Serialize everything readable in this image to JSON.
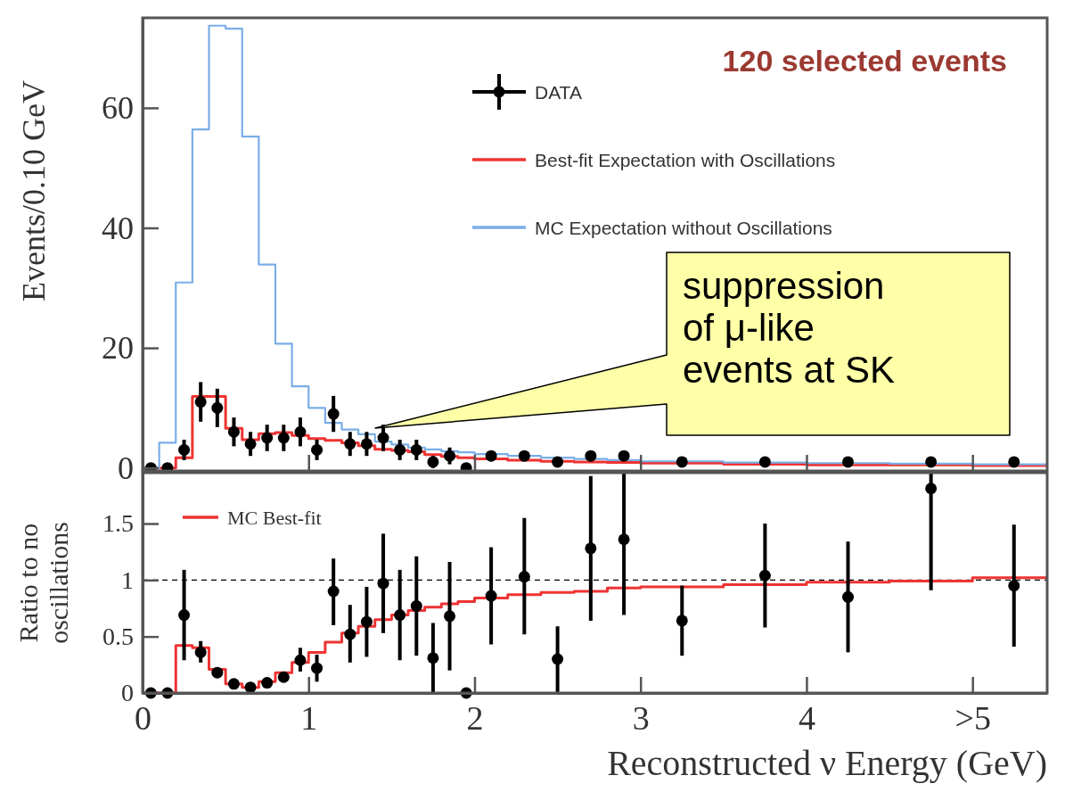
{
  "chart_data": [
    {
      "type": "step",
      "ylabel": "Events/0.10 GeV",
      "xlim": [
        0,
        5.45
      ],
      "ylim": [
        -0.5,
        75
      ],
      "xticks": [
        0,
        1,
        2,
        3,
        4,
        5
      ],
      "yticks": [
        0,
        20,
        40,
        60
      ],
      "tick_labels": "y",
      "legend": "top right",
      "series": [
        {
          "name": "DATA",
          "type": "scatter",
          "marker": "circle",
          "color": "#000000",
          "x": [
            0.05,
            0.15,
            0.25,
            0.35,
            0.45,
            0.55,
            0.65,
            0.75,
            0.85,
            0.95,
            1.05,
            1.15,
            1.25,
            1.35,
            1.45,
            1.55,
            1.65,
            1.75,
            1.85,
            1.95,
            2.1,
            2.3,
            2.5,
            2.7,
            2.9,
            3.25,
            3.75,
            4.25,
            4.75,
            5.25
          ],
          "values": [
            0,
            0,
            3,
            11,
            10,
            6,
            4,
            5,
            5,
            6,
            3,
            9,
            4,
            4,
            5,
            3,
            3,
            1,
            2,
            0,
            2,
            2,
            1,
            2,
            2,
            1,
            1,
            1,
            1,
            1
          ],
          "errors": [
            null,
            null,
            1.7,
            3.3,
            3.2,
            2.4,
            2,
            2.2,
            2.2,
            2.4,
            1.7,
            3,
            2,
            2,
            2.2,
            1.7,
            1.7,
            1,
            1.4,
            null,
            null,
            null,
            null,
            null,
            null,
            null,
            null,
            null,
            null,
            null
          ]
        },
        {
          "name": "Best-fit Expectation with Oscillations",
          "color": "#ee3333",
          "x": [
            0,
            0.1,
            0.2,
            0.3,
            0.4,
            0.5,
            0.6,
            0.7,
            0.8,
            0.9,
            1.0,
            1.1,
            1.2,
            1.3,
            1.4,
            1.5,
            1.6,
            1.7,
            1.8,
            1.9,
            2.0,
            2.2,
            2.4,
            2.6,
            2.8,
            3.0,
            3.5,
            4.0,
            4.5,
            5.0,
            5.45
          ],
          "values": [
            0,
            0,
            1.7,
            11.9,
            11.9,
            6.6,
            4.7,
            5.7,
            5.9,
            5.4,
            4.9,
            4.6,
            4.2,
            3.7,
            3.1,
            2.9,
            2.7,
            2.2,
            1.9,
            1.7,
            1.5,
            1.3,
            1.1,
            1.0,
            0.9,
            0.8,
            0.6,
            0.5,
            0.5,
            0.4,
            0.4
          ]
        },
        {
          "name": "MC Expectation without Oscillations",
          "color": "#7aaee6",
          "x": [
            0,
            0.1,
            0.2,
            0.3,
            0.4,
            0.5,
            0.6,
            0.7,
            0.8,
            0.9,
            1.0,
            1.1,
            1.2,
            1.3,
            1.4,
            1.5,
            1.6,
            1.7,
            1.8,
            1.9,
            2.0,
            2.2,
            2.4,
            2.6,
            2.8,
            3.0,
            3.5,
            4.0,
            4.5,
            5.0,
            5.45
          ],
          "values": [
            0,
            4.2,
            30.9,
            56.4,
            73.7,
            73.2,
            55.2,
            33.9,
            20.7,
            13.6,
            10,
            7.5,
            6.4,
            5.6,
            4.4,
            3.9,
            3.4,
            3.1,
            2.8,
            2.6,
            2.3,
            2.0,
            1.7,
            1.5,
            1.3,
            1.1,
            0.9,
            0.8,
            0.7,
            0.6,
            0.6
          ]
        }
      ],
      "annotations": [
        "120 selected events",
        "suppression\nof μ-like\nevents at SK"
      ]
    },
    {
      "type": "step",
      "xlabel": "Reconstructed ν Energy (GeV)",
      "ylabel": "Ratio to no\noscillations",
      "xlim": [
        0,
        5.45
      ],
      "ylim": [
        0,
        1.95
      ],
      "xticks": [
        0,
        1,
        2,
        3,
        4,
        {
          "value": 5,
          "label": ">5"
        }
      ],
      "yticks": [
        0,
        0.5,
        1,
        1.5
      ],
      "legend": "top left",
      "ref_lines": [
        {
          "axis": "y",
          "value": 1,
          "color": "#000000",
          "line_style": "dashed"
        }
      ],
      "series": [
        {
          "type": "scatter",
          "marker": "circle",
          "color": "#000000",
          "x": [
            0.05,
            0.15,
            0.25,
            0.35,
            0.45,
            0.55,
            0.65,
            0.75,
            0.85,
            0.95,
            1.05,
            1.15,
            1.25,
            1.35,
            1.45,
            1.55,
            1.65,
            1.75,
            1.85,
            1.95,
            2.1,
            2.3,
            2.5,
            2.7,
            2.9,
            3.25,
            3.75,
            4.25,
            4.75,
            5.25
          ],
          "values": [
            0,
            0,
            0.69,
            0.36,
            0.18,
            0.08,
            0.05,
            0.09,
            0.14,
            0.29,
            0.22,
            0.9,
            0.52,
            0.63,
            0.97,
            0.69,
            0.77,
            0.31,
            0.68,
            0,
            0.86,
            1.03,
            0.3,
            1.28,
            1.36,
            0.64,
            1.04,
            0.85,
            1.81,
            0.95
          ],
          "errors": [
            null,
            null,
            [
              0.29,
              1.09
            ],
            [
              0.27,
              0.46
            ],
            null,
            null,
            null,
            null,
            null,
            [
              0.19,
              0.4
            ],
            [
              0.1,
              0.34
            ],
            [
              0.6,
              1.19
            ],
            [
              0.27,
              0.78
            ],
            [
              0.32,
              0.94
            ],
            [
              0.53,
              1.41
            ],
            [
              0.29,
              1.09
            ],
            [
              0.33,
              1.21
            ],
            [
              0,
              0.62
            ],
            [
              0.2,
              1.16
            ],
            null,
            [
              0.43,
              1.29
            ],
            [
              0.52,
              1.55
            ],
            [
              0,
              0.59
            ],
            [
              0.64,
              1.92
            ],
            [
              0.69,
              1.95
            ],
            [
              0.33,
              0.95
            ],
            [
              0.58,
              1.5
            ],
            [
              0.36,
              1.34
            ],
            [
              0.91,
              1.95
            ],
            [
              0.41,
              1.49
            ]
          ]
        },
        {
          "name": "MC Best-fit",
          "color": "#ee3333",
          "x": [
            0,
            0.1,
            0.2,
            0.3,
            0.4,
            0.5,
            0.6,
            0.7,
            0.8,
            0.9,
            1.0,
            1.1,
            1.2,
            1.3,
            1.4,
            1.5,
            1.6,
            1.7,
            1.8,
            1.9,
            2.0,
            2.2,
            2.4,
            2.6,
            2.8,
            3.0,
            3.5,
            4.0,
            4.5,
            5.0,
            5.45
          ],
          "values": [
            0,
            0,
            0.42,
            0.4,
            0.21,
            0.08,
            0.05,
            0.1,
            0.18,
            0.27,
            0.36,
            0.45,
            0.53,
            0.59,
            0.65,
            0.69,
            0.73,
            0.76,
            0.79,
            0.81,
            0.84,
            0.87,
            0.89,
            0.9,
            0.93,
            0.94,
            0.96,
            0.98,
            0.99,
            1.02,
            1.02
          ]
        }
      ]
    }
  ]
}
